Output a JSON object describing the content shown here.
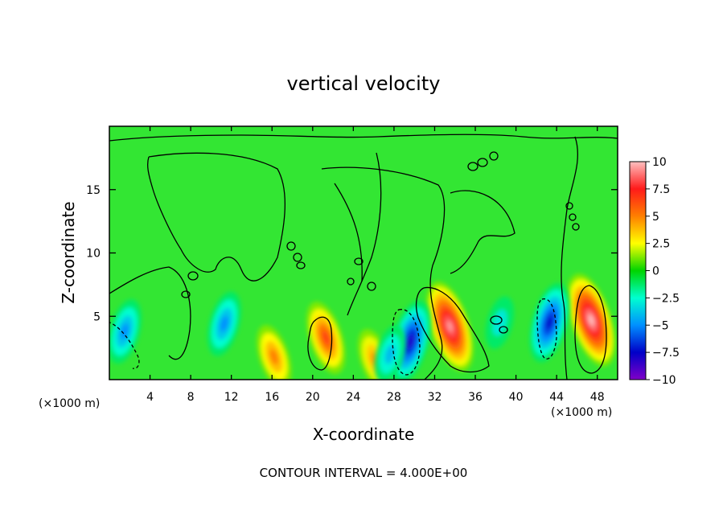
{
  "chart_data": {
    "type": "heatmap",
    "title": "vertical velocity",
    "xlabel": "X-coordinate",
    "ylabel": "Z-coordinate",
    "x_unit_label": "(×1000 m)",
    "xlim": [
      0,
      50
    ],
    "ylim": [
      0,
      20
    ],
    "x_ticks": [
      4,
      8,
      12,
      16,
      20,
      24,
      28,
      32,
      36,
      40,
      44,
      48
    ],
    "y_ticks": [
      5,
      10,
      15
    ],
    "footer": "CONTOUR INTERVAL = 4.000E+00",
    "colorbar": {
      "range": [
        -10,
        10
      ],
      "tick_labels": [
        "10",
        "7.5",
        "5",
        "2.5",
        "0",
        "−2.5",
        "−5",
        "−7.5",
        "−10"
      ],
      "tick_values": [
        10,
        7.5,
        5,
        2.5,
        0,
        -2.5,
        -5,
        -7.5,
        -10
      ],
      "colors": [
        "#ffc0c0",
        "#ff1a1a",
        "#ff7f00",
        "#ffff00",
        "#00d400",
        "#00ffd0",
        "#0090ff",
        "#0000c8",
        "#8000c8"
      ]
    },
    "background_color": "#33e633",
    "features": [
      {
        "x": 33.5,
        "z": 4.2,
        "value": 9.5
      },
      {
        "x": 47.4,
        "z": 4.7,
        "value": 10
      },
      {
        "x": 21.3,
        "z": 3.3,
        "value": 6.5
      },
      {
        "x": 16.2,
        "z": 1.8,
        "value": 5
      },
      {
        "x": 26.1,
        "z": 1.6,
        "value": 4.5
      },
      {
        "x": 29.6,
        "z": 3.0,
        "value": -8
      },
      {
        "x": 43.3,
        "z": 4.5,
        "value": -7.5
      },
      {
        "x": 11.3,
        "z": 4.4,
        "value": -5
      },
      {
        "x": 1.5,
        "z": 3.8,
        "value": -5
      },
      {
        "x": 27.6,
        "z": 2.0,
        "value": -4
      },
      {
        "x": 38.4,
        "z": 4.5,
        "value": -3
      }
    ]
  }
}
